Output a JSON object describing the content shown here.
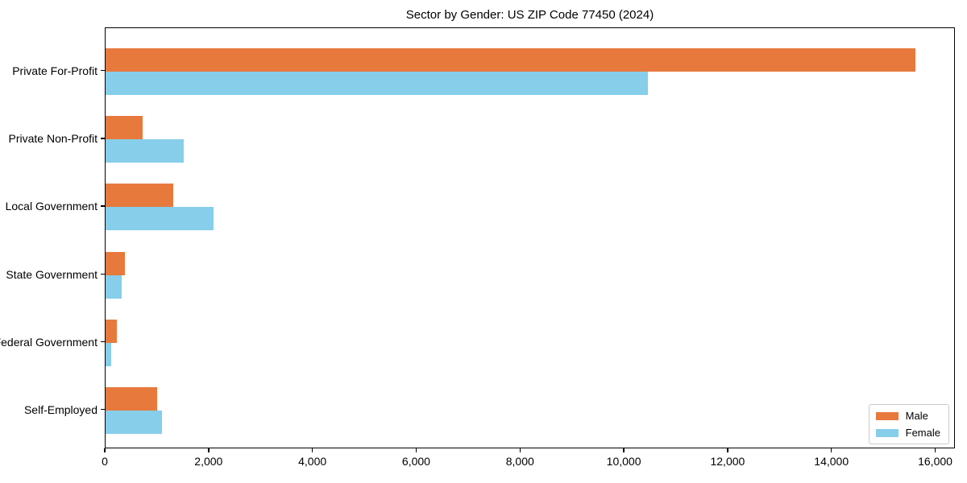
{
  "chart_data": {
    "type": "bar",
    "orientation": "horizontal",
    "title": "Sector by Gender: US ZIP Code 77450 (2024)",
    "categories": [
      "Private For-Profit",
      "Private Non-Profit",
      "Local Government",
      "State Government",
      "Federal Government",
      "Self-Employed"
    ],
    "series": [
      {
        "name": "Male",
        "color": "#E8793D",
        "values": [
          15600,
          720,
          1310,
          380,
          220,
          1000
        ]
      },
      {
        "name": "Female",
        "color": "#87CEEB",
        "values": [
          10450,
          1510,
          2080,
          310,
          110,
          1080
        ]
      }
    ],
    "xlabel": "",
    "ylabel": "",
    "xlim": [
      0,
      16380
    ],
    "xticks": [
      0,
      2000,
      4000,
      6000,
      8000,
      10000,
      12000,
      14000,
      16000
    ],
    "xticklabels": [
      "0",
      "2,000",
      "4,000",
      "6,000",
      "8,000",
      "10,000",
      "12,000",
      "14,000",
      "16,000"
    ],
    "grid": false,
    "legend_position": "lower right",
    "axis_color": "#000000",
    "background_color": "#ffffff"
  }
}
